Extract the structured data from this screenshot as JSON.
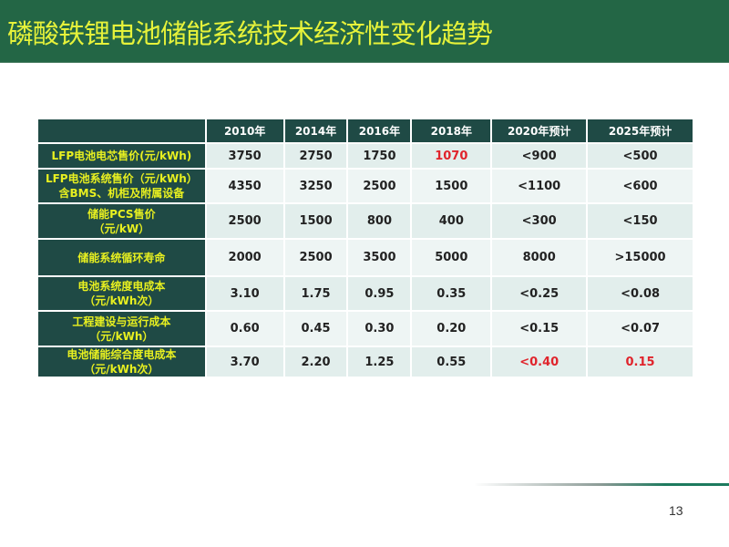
{
  "title": "磷酸铁锂电池储能系统技术经济性变化趋势",
  "table": {
    "headers": [
      "",
      "2010年",
      "2014年",
      "2016年",
      "2018年",
      "2020年预计",
      "2025年预计"
    ],
    "rows": [
      {
        "label": [
          "LFP电池电芯售价(元/kWh)"
        ],
        "values": [
          "3750",
          "2750",
          "1750",
          "1070",
          "<900",
          "<500"
        ],
        "red": [
          3
        ]
      },
      {
        "label": [
          "LFP电池系统售价（元/kWh）",
          "含BMS、机柜及附属设备"
        ],
        "values": [
          "4350",
          "3250",
          "2500",
          "1500",
          "<1100",
          "<600"
        ],
        "red": []
      },
      {
        "label": [
          "储能PCS售价",
          "（元/kW）"
        ],
        "values": [
          "2500",
          "1500",
          "800",
          "400",
          "<300",
          "<150"
        ],
        "red": []
      },
      {
        "label": [
          "储能系统循环寿命"
        ],
        "values": [
          "2000",
          "2500",
          "3500",
          "5000",
          "8000",
          ">15000"
        ],
        "red": []
      },
      {
        "label": [
          "电池系统度电成本",
          "（元/kWh次）"
        ],
        "values": [
          "3.10",
          "1.75",
          "0.95",
          "0.35",
          "<0.25",
          "<0.08"
        ],
        "red": []
      },
      {
        "label": [
          "工程建设与运行成本",
          "（元/kWh）"
        ],
        "values": [
          "0.60",
          "0.45",
          "0.30",
          "0.20",
          "<0.15",
          "<0.07"
        ],
        "red": []
      },
      {
        "label": [
          "电池储能综合度电成本",
          "（元/kWh次）"
        ],
        "values": [
          "3.70",
          "2.20",
          "1.25",
          "0.55",
          "<0.40",
          "0.15"
        ],
        "red": [
          4,
          5
        ]
      }
    ]
  },
  "page_number": "13",
  "colors": {
    "title_bar": "#236645",
    "title_text": "#e6f23a",
    "header_bg": "#1f4a45",
    "label_text": "#e8f020",
    "highlight": "#e0242c"
  }
}
